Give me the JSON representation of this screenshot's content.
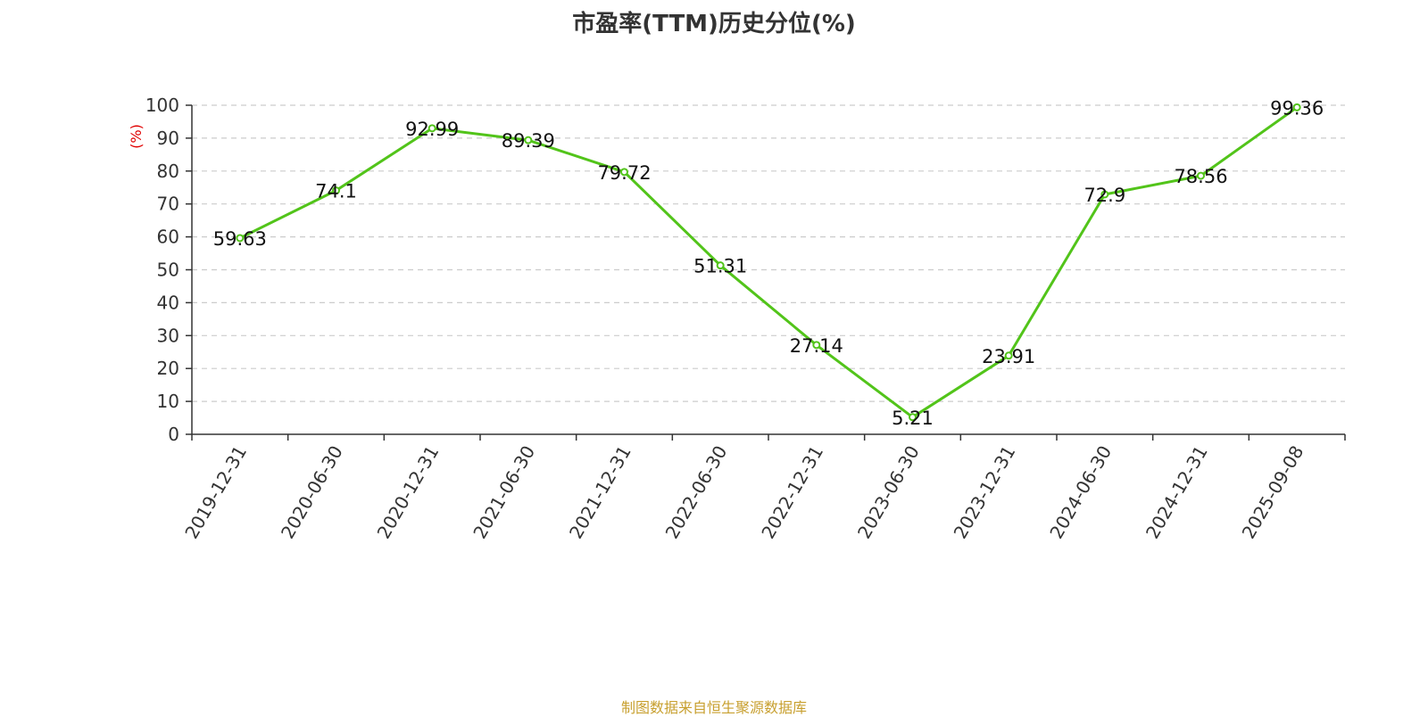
{
  "chart_data": {
    "type": "line",
    "title": "市盈率(TTM)历史分位(%)",
    "ylabel": "(%)",
    "xlabel": "",
    "ylim": [
      0,
      100
    ],
    "yticks": [
      0,
      10,
      20,
      30,
      40,
      50,
      60,
      70,
      80,
      90,
      100
    ],
    "grid": true,
    "categories": [
      "2019-12-31",
      "2020-06-30",
      "2020-12-31",
      "2021-06-30",
      "2021-12-31",
      "2022-06-30",
      "2022-12-31",
      "2023-06-30",
      "2023-12-31",
      "2024-06-30",
      "2024-12-31",
      "2025-09-08"
    ],
    "series": [
      {
        "values": [
          59.63,
          74.1,
          92.99,
          89.39,
          79.72,
          51.31,
          27.14,
          5.21,
          23.91,
          72.9,
          78.56,
          99.36
        ]
      }
    ],
    "data_labels": [
      "59.63",
      "74.1",
      "92.99",
      "89.39",
      "79.72",
      "51.31",
      "27.14",
      "5.21",
      "23.91",
      "72.9",
      "78.56",
      "99.36"
    ],
    "colors": {
      "line": "#52c41a",
      "grid": "#cccccc",
      "ylabel": "#e00000"
    }
  },
  "footer": "制图数据来自恒生聚源数据库"
}
